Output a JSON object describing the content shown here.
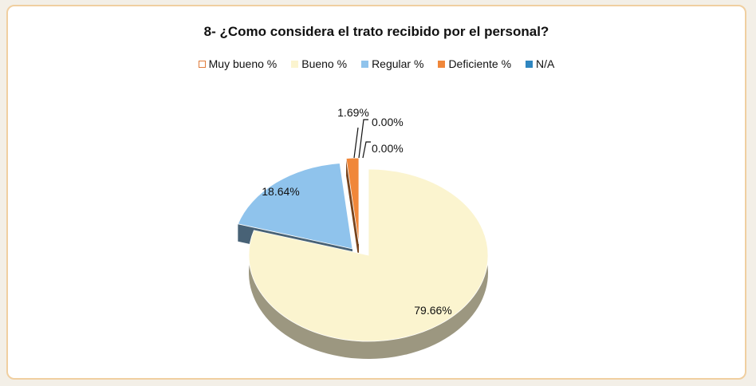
{
  "chart_data": {
    "type": "pie",
    "title": "8- ¿Como considera el trato recibido por el personal?",
    "legend_position": "top",
    "style": "3d-exploded",
    "series": [
      {
        "name": "Muy bueno %",
        "value": 0.0,
        "label": "0.00%",
        "color": "#ffffff",
        "border": "#e07b3a"
      },
      {
        "name": "Bueno %",
        "value": 79.66,
        "label": "79.66%",
        "color": "#fbf4cf"
      },
      {
        "name": "Regular %",
        "value": 18.64,
        "label": "18.64%",
        "color": "#8fc3ec"
      },
      {
        "name": "Deficiente %",
        "value": 1.69,
        "label": "1.69%",
        "color": "#f0873a"
      },
      {
        "name": "N/A",
        "value": 0.0,
        "label": "0.00%",
        "color": "#2f86c0"
      }
    ]
  }
}
